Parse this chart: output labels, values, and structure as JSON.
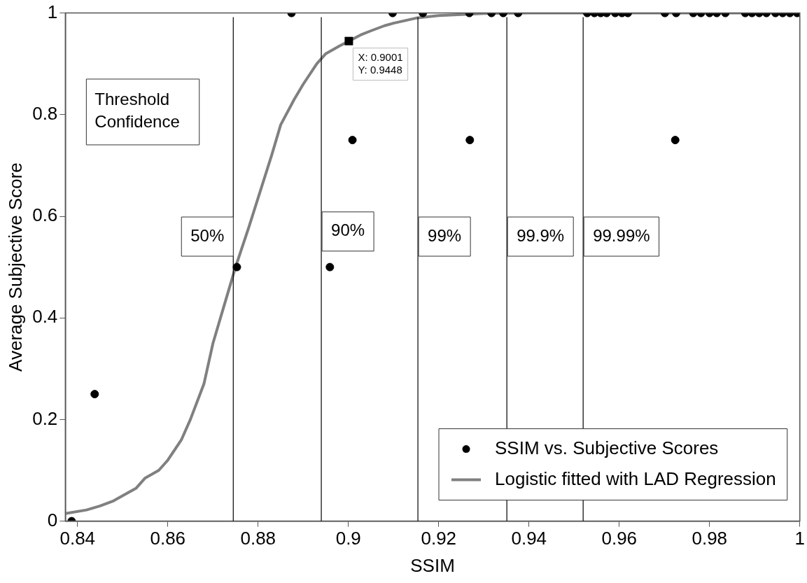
{
  "chart_data": {
    "type": "scatter",
    "xlabel": "SSIM",
    "ylabel": "Average Subjective Score",
    "xlim": [
      0.8373,
      1
    ],
    "xticks": [
      0.84,
      0.86,
      0.88,
      0.9,
      0.92,
      0.94,
      0.96,
      0.98,
      1
    ],
    "ylim": [
      0,
      1
    ],
    "yticks": [
      0,
      0.2,
      0.4,
      0.6,
      0.8,
      1
    ],
    "grid": false,
    "legend": "bottom right",
    "series": [
      {
        "name": "SSIM vs. Subjective Scores",
        "marker": "circle",
        "color": "#000000",
        "x": [
          0.8387,
          0.8438,
          0.8753,
          0.8959,
          0.9009,
          0.9269,
          0.9724,
          0.8874,
          0.9098,
          0.9165,
          0.9268,
          0.9317,
          0.9343,
          0.9376,
          0.9529,
          0.9545,
          0.9559,
          0.9572,
          0.9591,
          0.9606,
          0.9619,
          0.9701,
          0.9726,
          0.9764,
          0.9781,
          0.98,
          0.9816,
          0.9835,
          0.9879,
          0.9894,
          0.991,
          0.9926,
          0.9946,
          0.9962,
          0.9978,
          0.9994
        ],
        "values": [
          0,
          0.25,
          0.5,
          0.5,
          0.75,
          0.75,
          0.75,
          1,
          1,
          1,
          1,
          1,
          1,
          1,
          1,
          1,
          1,
          1,
          1,
          1,
          1,
          1,
          1,
          1,
          1,
          1,
          1,
          1,
          1,
          1,
          1,
          1,
          1,
          1,
          1,
          1
        ]
      },
      {
        "name": "Logistic fitted with LAD Regression",
        "type": "line",
        "marker": "none",
        "color": "#808080",
        "x": [
          0.8373,
          0.842,
          0.845,
          0.848,
          0.85,
          0.853,
          0.855,
          0.858,
          0.86,
          0.863,
          0.865,
          0.868,
          0.87,
          0.873,
          0.875,
          0.878,
          0.88,
          0.883,
          0.885,
          0.888,
          0.89,
          0.893,
          0.895,
          0.898,
          0.9001,
          0.903,
          0.905,
          0.908,
          0.91,
          0.915,
          0.92,
          0.93,
          0.94,
          1
        ],
        "values": [
          0.015,
          0.022,
          0.03,
          0.04,
          0.05,
          0.065,
          0.085,
          0.1,
          0.12,
          0.16,
          0.2,
          0.27,
          0.35,
          0.44,
          0.5,
          0.58,
          0.636,
          0.72,
          0.78,
          0.83,
          0.86,
          0.9,
          0.92,
          0.935,
          0.9448,
          0.958,
          0.965,
          0.975,
          0.98,
          0.99,
          0.995,
          0.999,
          1,
          1
        ]
      }
    ],
    "ref_lines": [
      {
        "axis": "x",
        "value": 0.8745,
        "color": "#000000"
      },
      {
        "axis": "x",
        "value": 0.894,
        "color": "#000000"
      },
      {
        "axis": "x",
        "value": 0.9154,
        "color": "#000000"
      },
      {
        "axis": "x",
        "value": 0.9351,
        "color": "#000000"
      },
      {
        "axis": "x",
        "value": 0.952,
        "color": "#000000"
      }
    ],
    "annotations": [
      "Threshold\nConfidence",
      {
        "text": "50%",
        "x": 0.8745,
        "y": 0.56
      },
      {
        "text": "90%",
        "x": 0.894,
        "y": 0.57
      },
      {
        "text": "99%",
        "x": 0.9154,
        "y": 0.56
      },
      {
        "text": "99.9%",
        "x": 0.9351,
        "y": 0.56
      },
      {
        "text": "99.99%",
        "x": 0.952,
        "y": 0.56
      },
      {
        "text": "X: 0.9001\nY: 0.9448",
        "x": 0.9001,
        "y": 0.9448
      }
    ]
  }
}
